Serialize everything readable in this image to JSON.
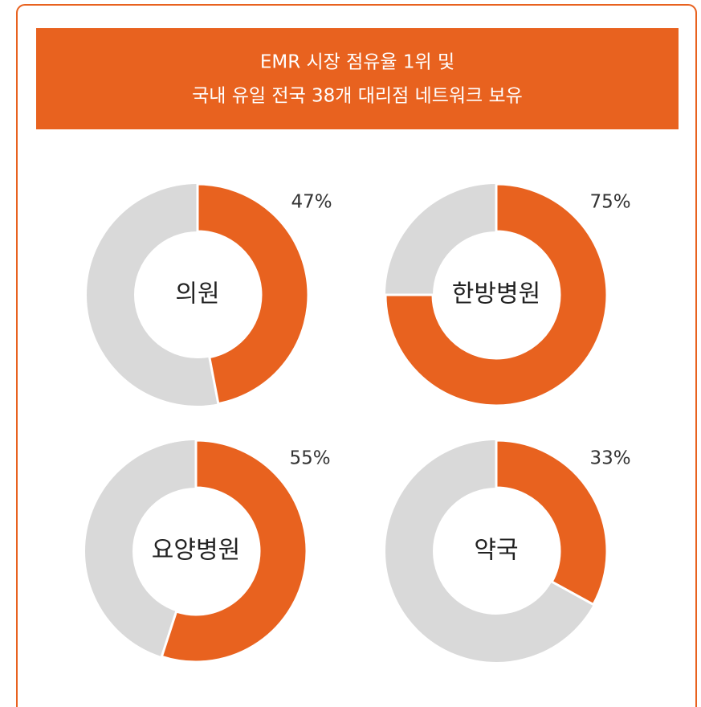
{
  "header": {
    "title_lines": [
      "EMR 시장 점유율 1위 및",
      "국내 유일 전국 38개 대리점 네트워크 보유"
    ]
  },
  "chart_data": [
    {
      "type": "pie",
      "label": "의원",
      "values": [
        47
      ],
      "value_labels": [
        "47%"
      ],
      "color": "#e8621f"
    },
    {
      "type": "pie",
      "label": "한방병원",
      "values": [
        75
      ],
      "value_labels": [
        "75%"
      ],
      "color": "#e8621f"
    },
    {
      "type": "pie",
      "label": "요양병원",
      "values": [
        55
      ],
      "value_labels": [
        "55%"
      ],
      "color": "#e8621f"
    },
    {
      "type": "pie",
      "label": "약국",
      "values": [
        33
      ],
      "value_labels": [
        "33%"
      ],
      "color": "#e8621f"
    }
  ]
}
